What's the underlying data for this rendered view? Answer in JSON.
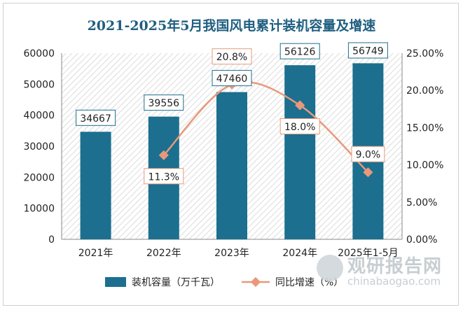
{
  "chart_data": {
    "type": "bar",
    "title": "2021-2025年5月我国风电累计装机容量及增速",
    "categories": [
      "2021年",
      "2022年",
      "2023年",
      "2024年",
      "2025年1-5月"
    ],
    "series": [
      {
        "name": "装机容量（万千瓦）",
        "type": "bar",
        "axis": "left",
        "values": [
          34667,
          39556,
          47460,
          56126,
          56749
        ],
        "labels": [
          "34667",
          "39556",
          "47460",
          "56126",
          "56749"
        ],
        "color": "#1c6f8f"
      },
      {
        "name": "同比增速（%）",
        "type": "line",
        "axis": "right",
        "values": [
          null,
          11.3,
          20.8,
          18.0,
          9.0
        ],
        "labels": [
          "",
          "11.3%",
          "20.8%",
          "18.0%",
          "9.0%"
        ],
        "color": "#e8997a"
      }
    ],
    "y_left": {
      "min": 0,
      "max": 60000,
      "ticks": [
        "0",
        "10000",
        "20000",
        "30000",
        "40000",
        "50000",
        "60000"
      ]
    },
    "y_right": {
      "min": 0,
      "max": 25,
      "ticks": [
        "0.00%",
        "5.00%",
        "10.00%",
        "15.00%",
        "20.00%",
        "25.00%"
      ]
    },
    "legend_position": "bottom"
  },
  "watermark": {
    "brand": "观研报告网",
    "url": "chinabaogao.com"
  }
}
